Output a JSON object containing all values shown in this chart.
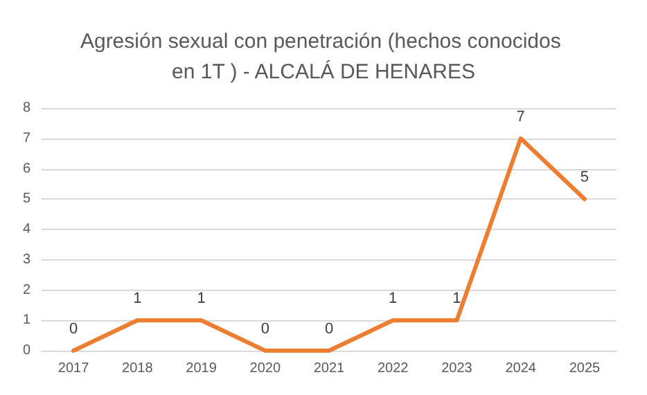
{
  "chart_data": {
    "type": "line",
    "title": "Agresión sexual con penetración (hechos conocidos en 1T ) - ALCALÁ DE HENARES",
    "categories": [
      "2017",
      "2018",
      "2019",
      "2020",
      "2021",
      "2022",
      "2023",
      "2024",
      "2025"
    ],
    "values": [
      0,
      1,
      1,
      0,
      0,
      1,
      1,
      7,
      5
    ],
    "color": "#ed7d31",
    "ylim": [
      0,
      8
    ],
    "yticks": [
      0,
      1,
      2,
      3,
      4,
      5,
      6,
      7,
      8
    ],
    "grid": "y",
    "data_labels": true,
    "marker": "none",
    "line_style": "solid"
  }
}
